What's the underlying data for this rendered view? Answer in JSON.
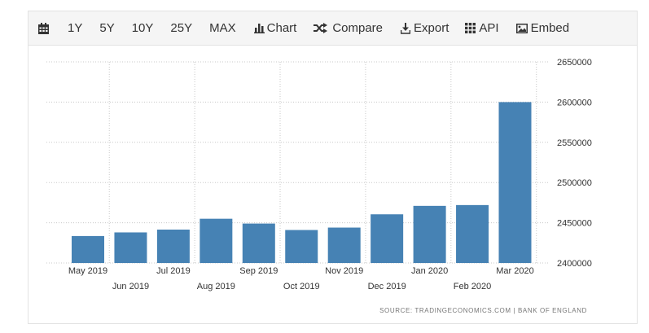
{
  "toolbar": {
    "ranges": [
      "1Y",
      "5Y",
      "10Y",
      "25Y",
      "MAX"
    ],
    "chart_label": "Chart",
    "compare_label": "Compare",
    "export_label": "Export",
    "api_label": "API",
    "embed_label": "Embed"
  },
  "source": {
    "label": "SOURCE:",
    "site": "TRADINGECONOMICS.COM",
    "separator": "|",
    "provider": "BANK OF ENGLAND"
  },
  "colors": {
    "bar": "#4682b4",
    "grid": "#c8c8c8",
    "axis_text": "#333333"
  },
  "chart_data": {
    "type": "bar",
    "categories": [
      "May 2019",
      "Jun 2019",
      "Jul 2019",
      "Aug 2019",
      "Sep 2019",
      "Oct 2019",
      "Nov 2019",
      "Dec 2019",
      "Jan 2020",
      "Feb 2020",
      "Mar 2020"
    ],
    "values": [
      2433500,
      2438000,
      2441500,
      2455000,
      2449000,
      2441000,
      2444000,
      2460500,
      2471000,
      2472000,
      2600000
    ],
    "ylim": [
      2400000,
      2650000
    ],
    "yticks": [
      "2400000",
      "2450000",
      "2500000",
      "2550000",
      "2600000",
      "2650000"
    ],
    "y_axis_position": "right",
    "grid": true,
    "legend": "none"
  }
}
